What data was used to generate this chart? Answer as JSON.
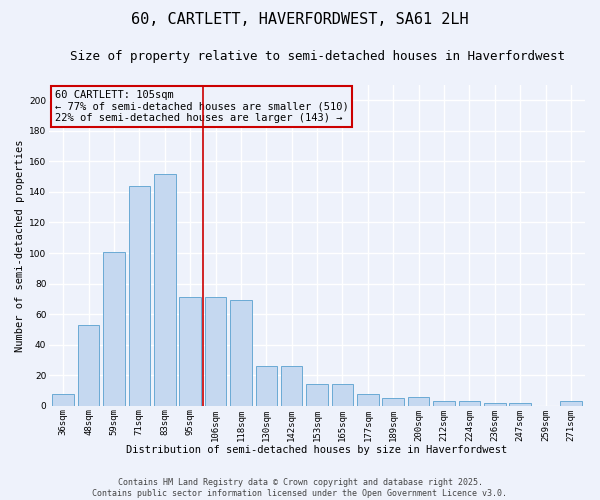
{
  "title": "60, CARTLETT, HAVERFORDWEST, SA61 2LH",
  "subtitle": "Size of property relative to semi-detached houses in Haverfordwest",
  "xlabel": "Distribution of semi-detached houses by size in Haverfordwest",
  "ylabel": "Number of semi-detached properties",
  "footer_line1": "Contains HM Land Registry data © Crown copyright and database right 2025.",
  "footer_line2": "Contains public sector information licensed under the Open Government Licence v3.0.",
  "annotation_title": "60 CARTLETT: 105sqm",
  "annotation_line1": "← 77% of semi-detached houses are smaller (510)",
  "annotation_line2": "22% of semi-detached houses are larger (143) →",
  "categories": [
    "36sqm",
    "48sqm",
    "59sqm",
    "71sqm",
    "83sqm",
    "95sqm",
    "106sqm",
    "118sqm",
    "130sqm",
    "142sqm",
    "153sqm",
    "165sqm",
    "177sqm",
    "189sqm",
    "200sqm",
    "212sqm",
    "224sqm",
    "236sqm",
    "247sqm",
    "259sqm",
    "271sqm"
  ],
  "values": [
    8,
    53,
    101,
    144,
    152,
    71,
    71,
    69,
    26,
    26,
    14,
    14,
    8,
    5,
    6,
    3,
    3,
    2,
    2,
    0,
    3
  ],
  "bar_color": "#c5d8f0",
  "bar_edge_color": "#6aaad4",
  "annotation_box_color": "#cc0000",
  "vline_index": 5.5,
  "ylim": [
    0,
    210
  ],
  "yticks": [
    0,
    20,
    40,
    60,
    80,
    100,
    120,
    140,
    160,
    180,
    200
  ],
  "background_color": "#eef2fb",
  "grid_color": "#ffffff",
  "title_fontsize": 11,
  "subtitle_fontsize": 9,
  "axis_label_fontsize": 7.5,
  "tick_fontsize": 6.5,
  "footer_fontsize": 6,
  "annotation_fontsize": 7.5
}
